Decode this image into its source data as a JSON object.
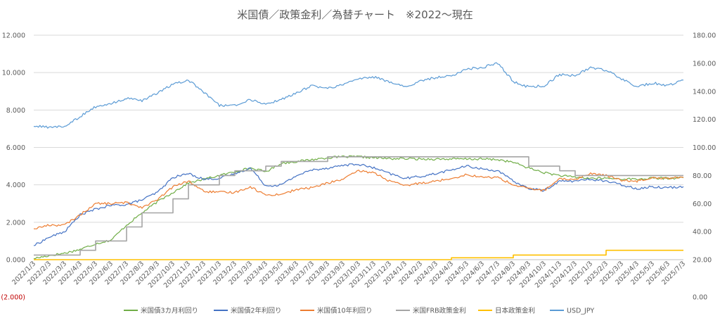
{
  "chart_data": {
    "type": "line",
    "title": "米国債／政策金利／為替チャート　※2022～現在",
    "xlabel": "",
    "ylabel": "",
    "y2label": "",
    "ylim": [
      -2,
      12
    ],
    "y2lim": [
      0,
      180
    ],
    "ytick_labels": [
      "(2.000)",
      "0.000",
      "2.000",
      "4.000",
      "6.000",
      "8.000",
      "10.000",
      "12.000"
    ],
    "y2tick_labels": [
      "0.00",
      "20.00",
      "40.00",
      "60.00",
      "80.00",
      "100.00",
      "120.00",
      "140.00",
      "160.00",
      "180.00"
    ],
    "categories": [
      "2022/1/3",
      "2022/2/3",
      "2022/3/3",
      "2022/4/3",
      "2022/5/3",
      "2022/6/3",
      "2022/7/3",
      "2022/8/3",
      "2022/9/3",
      "2022/10/3",
      "2022/11/3",
      "2022/12/3",
      "2023/1/3",
      "2023/2/3",
      "2023/3/3",
      "2023/4/3",
      "2023/5/3",
      "2023/6/3",
      "2023/7/3",
      "2023/8/3",
      "2023/9/3",
      "2023/10/3",
      "2023/11/3",
      "2023/12/3",
      "2024/1/3",
      "2024/2/3",
      "2024/3/3",
      "2024/4/3",
      "2024/5/3",
      "2024/6/3",
      "2024/7/3",
      "2024/8/3",
      "2024/9/3",
      "2024/10/3",
      "2024/11/3",
      "2024/12/3",
      "2025/1/3",
      "2025/2/3",
      "2025/3/3",
      "2025/4/3",
      "2025/5/3",
      "2025/6/3",
      "2025/7/3"
    ],
    "grid": true,
    "legend_position": "bottom",
    "series": [
      {
        "name": "米国債3カ月利回り",
        "color": "#70ad47",
        "axis": "left",
        "step": false,
        "values": [
          0.06,
          0.22,
          0.35,
          0.55,
          0.85,
          1.05,
          1.85,
          2.5,
          3.1,
          3.6,
          4.1,
          4.3,
          4.5,
          4.7,
          4.9,
          4.7,
          5.15,
          5.25,
          5.35,
          5.45,
          5.5,
          5.5,
          5.45,
          5.4,
          5.4,
          5.38,
          5.38,
          5.38,
          5.38,
          5.38,
          5.35,
          5.2,
          4.9,
          4.65,
          4.5,
          4.4,
          4.35,
          4.35,
          4.32,
          4.3,
          4.35,
          4.35,
          4.38
        ]
      },
      {
        "name": "米国債2年利回り",
        "color": "#4472c4",
        "axis": "left",
        "step": false,
        "values": [
          0.75,
          1.2,
          1.5,
          2.4,
          2.7,
          2.9,
          2.95,
          3.2,
          3.6,
          4.4,
          4.6,
          4.3,
          4.35,
          4.6,
          4.9,
          3.95,
          4.0,
          4.5,
          4.8,
          4.9,
          5.05,
          5.1,
          4.9,
          4.6,
          4.35,
          4.45,
          4.6,
          4.8,
          5.0,
          4.85,
          4.75,
          4.2,
          3.8,
          3.7,
          4.2,
          4.2,
          4.3,
          4.2,
          4.0,
          3.8,
          3.9,
          3.85,
          3.9
        ]
      },
      {
        "name": "米国債10年利回り",
        "color": "#ed7d31",
        "axis": "left",
        "step": false,
        "values": [
          1.65,
          1.85,
          1.85,
          2.4,
          3.0,
          3.0,
          3.05,
          2.8,
          3.2,
          3.9,
          4.2,
          3.65,
          3.6,
          3.6,
          3.9,
          3.45,
          3.5,
          3.75,
          3.85,
          4.1,
          4.3,
          4.75,
          4.65,
          4.2,
          3.95,
          4.1,
          4.2,
          4.35,
          4.55,
          4.4,
          4.4,
          4.0,
          3.8,
          3.7,
          4.3,
          4.3,
          4.6,
          4.5,
          4.25,
          4.2,
          4.4,
          4.35,
          4.4
        ]
      },
      {
        "name": "米国FRB政策金利",
        "color": "#a5a5a5",
        "axis": "left",
        "step": true,
        "values": [
          0.25,
          0.25,
          0.25,
          0.5,
          1.0,
          1.0,
          1.75,
          2.5,
          2.5,
          3.25,
          4.0,
          4.0,
          4.5,
          4.75,
          4.75,
          5.0,
          5.25,
          5.25,
          5.25,
          5.5,
          5.5,
          5.5,
          5.5,
          5.5,
          5.5,
          5.5,
          5.5,
          5.5,
          5.5,
          5.5,
          5.5,
          5.5,
          5.0,
          5.0,
          4.75,
          4.5,
          4.5,
          4.5,
          4.5,
          4.5,
          4.5,
          4.5,
          4.5
        ]
      },
      {
        "name": "日本政策金利",
        "color": "#ffc000",
        "axis": "left",
        "step": true,
        "values": [
          0,
          0,
          0,
          0,
          0,
          0,
          0,
          0,
          0,
          0,
          0,
          0,
          0,
          0,
          0,
          0,
          0,
          0,
          0,
          0,
          0,
          0,
          0,
          0,
          0,
          0,
          0,
          0.1,
          0.1,
          0.1,
          0.1,
          0.25,
          0.25,
          0.25,
          0.25,
          0.25,
          0.25,
          0.5,
          0.5,
          0.5,
          0.5,
          0.5,
          0.5
        ]
      },
      {
        "name": "USD_JPY",
        "color": "#5b9bd5",
        "axis": "right",
        "step": false,
        "values": [
          115,
          114.5,
          115,
          122,
          129,
          131,
          135,
          133,
          139,
          145,
          148,
          139,
          130,
          130,
          134,
          131,
          134,
          139,
          144,
          142,
          145,
          149,
          150,
          147,
          143,
          147,
          150,
          151,
          156,
          157,
          160,
          147,
          143,
          144,
          152,
          151,
          157,
          155,
          149,
          143,
          146,
          144,
          148
        ]
      }
    ]
  }
}
